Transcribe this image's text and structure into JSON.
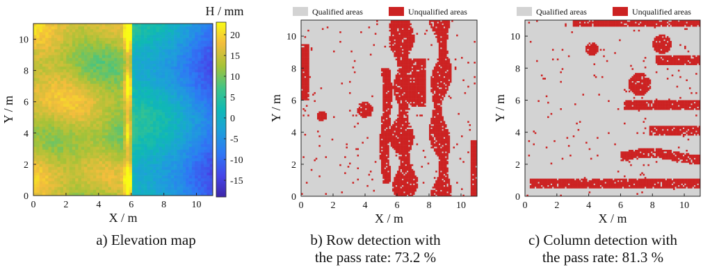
{
  "chart_data": [
    {
      "type": "heatmap",
      "panel_id": "a",
      "caption": "a) Elevation map",
      "xlabel": "X / m",
      "ylabel": "Y / m",
      "xlim": [
        0,
        11
      ],
      "ylim": [
        0,
        11
      ],
      "x_ticks": [
        "0",
        "2",
        "4",
        "6",
        "8",
        "10"
      ],
      "y_ticks": [
        "0",
        "2",
        "4",
        "6",
        "8",
        "10"
      ],
      "colorbar": {
        "label": "H / mm",
        "range": [
          -19,
          23
        ],
        "ticks": [
          "20",
          "15",
          "10",
          "5",
          "0",
          "-5",
          "-10",
          "-15"
        ]
      },
      "description_values": {
        "left_region_H_mm": [
          10,
          20
        ],
        "right_region_H_mm": [
          -17,
          0
        ],
        "ridge_x_m": 6
      }
    },
    {
      "type": "heatmap",
      "panel_id": "b",
      "caption_line1": "b) Row detection with",
      "caption_line2": "the pass rate: 73.2 %",
      "pass_rate_percent": 73.2,
      "xlabel": "X / m",
      "ylabel": "Y / m",
      "xlim": [
        0,
        11
      ],
      "ylim": [
        0,
        11
      ],
      "x_ticks": [
        "0",
        "2",
        "4",
        "6",
        "8",
        "10"
      ],
      "y_ticks": [
        "0",
        "2",
        "4",
        "6",
        "8",
        "10"
      ],
      "legend": [
        {
          "label": "Qualified areas",
          "color": "#d3d3d3"
        },
        {
          "label": "Unqualified areas",
          "color": "#cc2222"
        }
      ],
      "legend_position": "top"
    },
    {
      "type": "heatmap",
      "panel_id": "c",
      "caption_line1": "c) Column detection with",
      "caption_line2": "the pass rate: 81.3 %",
      "pass_rate_percent": 81.3,
      "xlabel": "X / m",
      "ylabel": "Y / m",
      "xlim": [
        0,
        11
      ],
      "ylim": [
        0,
        11
      ],
      "x_ticks": [
        "0",
        "2",
        "4",
        "6",
        "8",
        "10"
      ],
      "y_ticks": [
        "0",
        "2",
        "4",
        "6",
        "8",
        "10"
      ],
      "legend": [
        {
          "label": "Qualified areas",
          "color": "#d3d3d3"
        },
        {
          "label": "Unqualified areas",
          "color": "#cc2222"
        }
      ],
      "legend_position": "top"
    }
  ],
  "colors": {
    "qualified": "#d3d3d3",
    "unqualified": "#cc2222",
    "colormap": "parula"
  }
}
